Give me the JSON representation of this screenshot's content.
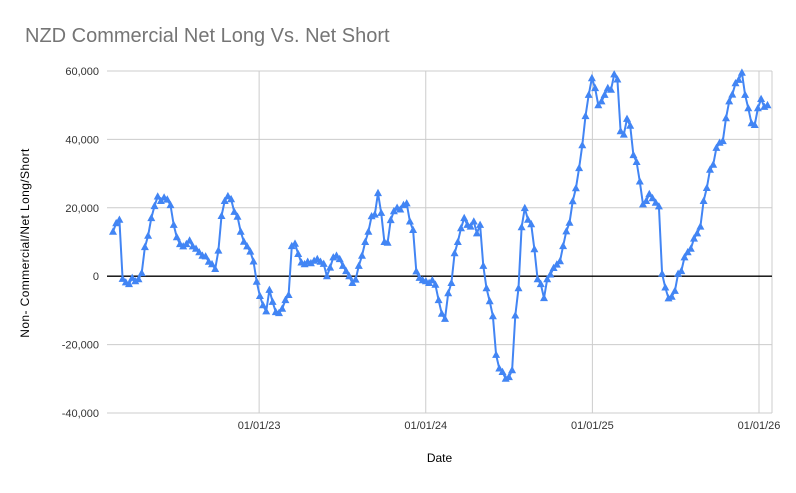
{
  "page": {
    "background_color": "#ffffff"
  },
  "chart": {
    "title": "NZD Commercial Net Long Vs. Net Short",
    "title_color": "#757575",
    "series_color": "#4285f4",
    "gridline_color": "#cccccc",
    "zero_line_color": "#000000",
    "tick_label_color": "#333333",
    "axis_title_color": "#000000"
  },
  "chart_data": {
    "type": "line",
    "title": "NZD Commercial Net Long Vs. Net Short",
    "xlabel": "Date",
    "ylabel": "Non- Commercial/Net Long/Short",
    "marker": "triangle-up",
    "grid": true,
    "legend": "none",
    "x_ticks": [
      {
        "label": "01/01/23",
        "year": 2023
      },
      {
        "label": "01/01/24",
        "year": 2024
      },
      {
        "label": "01/01/25",
        "year": 2025
      },
      {
        "label": "01/01/26",
        "year": 2026
      }
    ],
    "x_range_years": [
      2022.087,
      2026.078
    ],
    "ylim": [
      -40000,
      60000
    ],
    "y_ticks": [
      60000,
      40000,
      20000,
      0,
      -20000,
      -40000
    ],
    "y_tick_labels": [
      "60,000",
      "40,000",
      "20,000",
      "0",
      "-20,000",
      "-40,000"
    ],
    "series": [
      {
        "name": "Non-Commercial Net Long/Short",
        "x_start_year": 2022.123,
        "x_step_years": 0.01916,
        "values": [
          13000,
          15500,
          16500,
          -800,
          -1800,
          -2300,
          -500,
          -1500,
          -900,
          900,
          8500,
          11800,
          17000,
          20500,
          23300,
          22000,
          23000,
          22400,
          20800,
          15000,
          11400,
          9400,
          8700,
          9400,
          10400,
          8700,
          8000,
          7000,
          6000,
          5800,
          4200,
          3500,
          2100,
          7500,
          17600,
          22000,
          23400,
          22500,
          18800,
          17400,
          13000,
          10100,
          8700,
          7200,
          4300,
          -1600,
          -5800,
          -8500,
          -10300,
          -4000,
          -7500,
          -10500,
          -10800,
          -9500,
          -7000,
          -5500,
          8800,
          9500,
          6500,
          4000,
          3500,
          4200,
          3800,
          4500,
          5000,
          4200,
          3600,
          0,
          2500,
          5500,
          6000,
          5000,
          3000,
          1500,
          0,
          -2000,
          -1000,
          3000,
          6000,
          10000,
          13000,
          17500,
          18000,
          24300,
          18500,
          10000,
          9800,
          16400,
          19000,
          20000,
          19500,
          20800,
          21300,
          16000,
          13500,
          1400,
          -500,
          -1200,
          -1500,
          -2000,
          -1200,
          -2500,
          -7000,
          -11000,
          -12500,
          -5000,
          -2000,
          6700,
          10000,
          14000,
          17000,
          15000,
          14500,
          16000,
          12500,
          15000,
          3000,
          -3500,
          -7300,
          -11700,
          -23000,
          -27000,
          -28000,
          -30000,
          -29500,
          -27500,
          -11500,
          -3500,
          14300,
          19900,
          16500,
          15200,
          7900,
          -900,
          -2300,
          -6400,
          -900,
          500,
          2400,
          3400,
          4400,
          8800,
          13100,
          15600,
          21900,
          25700,
          31600,
          38300,
          46800,
          53000,
          57900,
          55000,
          50000,
          51100,
          53000,
          55000,
          54500,
          59000,
          57500,
          42400,
          41400,
          46000,
          44000,
          35400,
          33400,
          27700,
          21000,
          22000,
          24000,
          22800,
          21500,
          20400,
          700,
          -3300,
          -6500,
          -6000,
          -4300,
          700,
          1500,
          5500,
          7000,
          8000,
          11000,
          12500,
          14500,
          22000,
          25800,
          31100,
          32600,
          37500,
          39000,
          39500,
          46200,
          51100,
          53100,
          56400,
          57400,
          59500,
          53000,
          49100,
          44700,
          44200,
          49100,
          51800,
          49500,
          50000
        ]
      }
    ]
  }
}
